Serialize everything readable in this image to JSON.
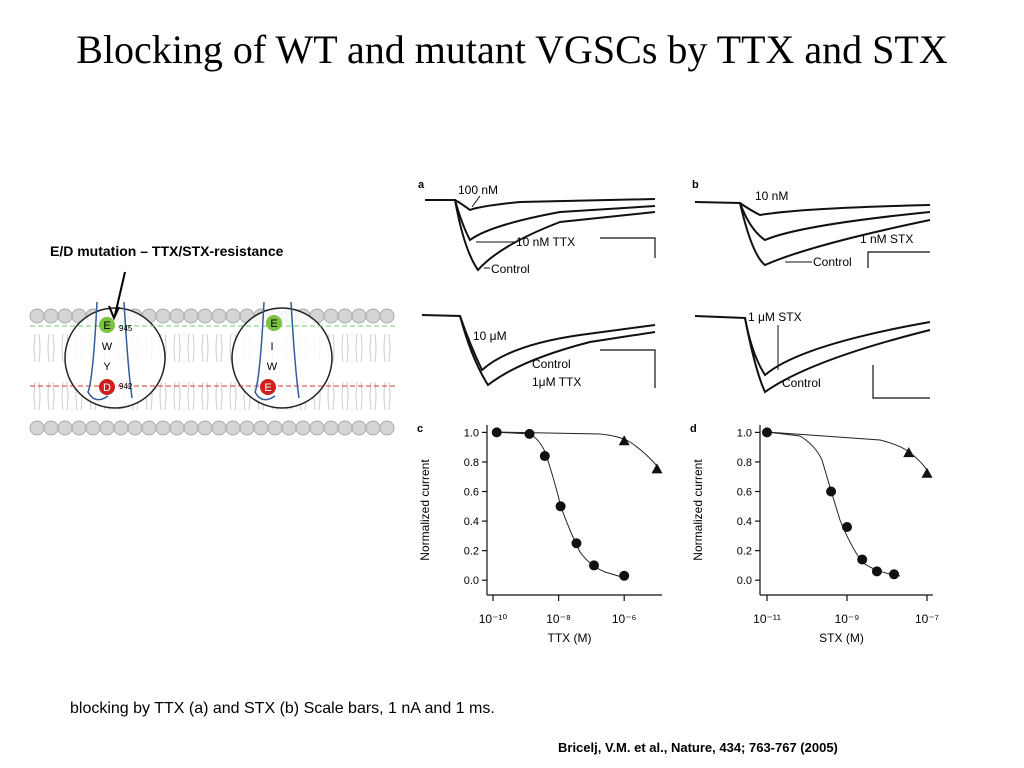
{
  "title": "Blocking of WT and mutant VGSCs by TTX and STX",
  "mutation_label": "E/D mutation – TTX/STX-resistance",
  "membrane": {
    "wt": {
      "residues": [
        "E",
        "W",
        "Y",
        "D"
      ],
      "numbers": [
        "945",
        "942"
      ]
    },
    "mutant": {
      "residues": [
        "E",
        "I",
        "W",
        "E"
      ]
    }
  },
  "traces": {
    "a": {
      "letter": "a",
      "labels": [
        "100 nM",
        "10 nM TTX",
        "Control"
      ]
    },
    "a2": {
      "labels": [
        "10 μM",
        "Control",
        "1μM  TTX"
      ]
    },
    "b": {
      "letter": "b",
      "labels": [
        "10 nM",
        "1 nM STX",
        "Control"
      ]
    },
    "b2": {
      "labels": [
        "1 μM STX",
        "Control"
      ]
    }
  },
  "plots": [
    {
      "letter": "c",
      "ylabel": "Normalized current",
      "xlabel": "TTX (M)",
      "log_x": true,
      "xlim": [
        1e-10,
        1e-05
      ],
      "ylim": [
        -0.1,
        1.05
      ],
      "xticks": [
        {
          "value": 1e-10,
          "label": "10⁻¹⁰"
        },
        {
          "value": 1e-08,
          "label": "10⁻⁸"
        },
        {
          "value": 1e-06,
          "label": "10⁻⁶"
        }
      ],
      "yticks": [
        {
          "value": 0,
          "label": "0.0"
        },
        0.2,
        0.4,
        0.6,
        0.8,
        {
          "value": 1,
          "label": "1.0"
        }
      ],
      "series": [
        {
          "marker": "circle",
          "x": [
            1.3e-10,
            1.3e-09,
            3.8e-09,
            1.15e-08,
            3.5e-08,
            1.2e-07,
            1e-06
          ],
          "values": [
            1.0,
            0.99,
            0.84,
            0.5,
            0.25,
            0.1,
            0.03
          ]
        },
        {
          "marker": "triangle",
          "x": [
            1e-06,
            1e-05
          ],
          "values": [
            0.94,
            0.75
          ]
        }
      ]
    },
    {
      "letter": "d",
      "ylabel": "Normalized current",
      "xlabel": "STX (M)",
      "log_x": true,
      "xlim": [
        1e-11,
        1e-07
      ],
      "ylim": [
        -0.1,
        1.05
      ],
      "xticks": [
        {
          "value": 1e-11,
          "label": "10⁻¹¹"
        },
        {
          "value": 1e-09,
          "label": "10⁻⁹"
        },
        {
          "value": 1e-07,
          "label": "10⁻⁷"
        }
      ],
      "yticks": [
        {
          "value": 0,
          "label": "0.0"
        },
        0.2,
        0.4,
        0.6,
        0.8,
        {
          "value": 1,
          "label": "1.0"
        }
      ],
      "series": [
        {
          "marker": "circle",
          "x": [
            1e-11,
            4e-10,
            1e-09,
            2.4e-09,
            5.6e-09,
            1.5e-08
          ],
          "values": [
            1.0,
            0.6,
            0.36,
            0.14,
            0.06,
            0.04
          ]
        },
        {
          "marker": "triangle",
          "x": [
            3.5e-08,
            1e-07
          ],
          "values": [
            0.86,
            0.72
          ]
        }
      ]
    }
  ],
  "caption": "blocking by TTX (a) and STX (b) Scale bars, 1 nA and 1 ms.",
  "citation": "Bricelj, V.M. et al., Nature, 434; 763-767 (2005)"
}
